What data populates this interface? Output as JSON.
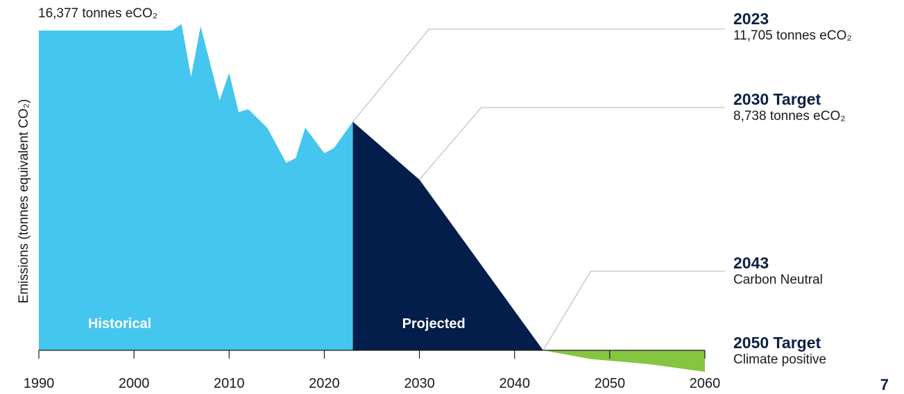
{
  "chart_data": {
    "type": "area",
    "ylabel": "Emissions (tonnes equivalent CO₂)",
    "xlim": [
      1990,
      2060
    ],
    "x_ticks": [
      "1990",
      "2000",
      "2010",
      "2020",
      "2030",
      "2040",
      "2050",
      "2060"
    ],
    "peak_label": "16,377 tonnes eCO₂",
    "series": [
      {
        "name": "Historical",
        "color": "#45c6ef",
        "points": [
          [
            1990,
            16377
          ],
          [
            2004,
            16377
          ],
          [
            2005,
            16700
          ],
          [
            2006,
            14000
          ],
          [
            2007,
            16600
          ],
          [
            2009,
            12800
          ],
          [
            2010,
            14200
          ],
          [
            2011,
            12200
          ],
          [
            2012,
            12350
          ],
          [
            2014,
            11400
          ],
          [
            2016,
            9600
          ],
          [
            2017,
            9850
          ],
          [
            2018,
            11400
          ],
          [
            2020,
            10100
          ],
          [
            2021,
            10350
          ],
          [
            2023,
            11705
          ]
        ]
      },
      {
        "name": "Projected",
        "color": "#031e4b",
        "points": [
          [
            2023,
            11705
          ],
          [
            2030,
            8738
          ],
          [
            2043,
            0
          ]
        ]
      },
      {
        "name": "",
        "color": "#86c540",
        "points": [
          [
            2043,
            0
          ],
          [
            2048,
            -450
          ],
          [
            2054,
            -700
          ],
          [
            2060,
            -1100
          ]
        ]
      }
    ],
    "annotations": [
      {
        "year": "2023",
        "desc": "11,705 tonnes eCO₂",
        "x": 2023,
        "y": 11705
      },
      {
        "year": "2030 Target",
        "desc": "8,738 tonnes eCO₂",
        "x": 2030,
        "y": 8738
      },
      {
        "year": "2043",
        "desc": "Carbon Neutral",
        "x": 2043,
        "y": 0
      },
      {
        "year": "2050 Target",
        "desc": "Climate positive",
        "x": 2043,
        "y": 0
      }
    ]
  },
  "page_number": "7"
}
